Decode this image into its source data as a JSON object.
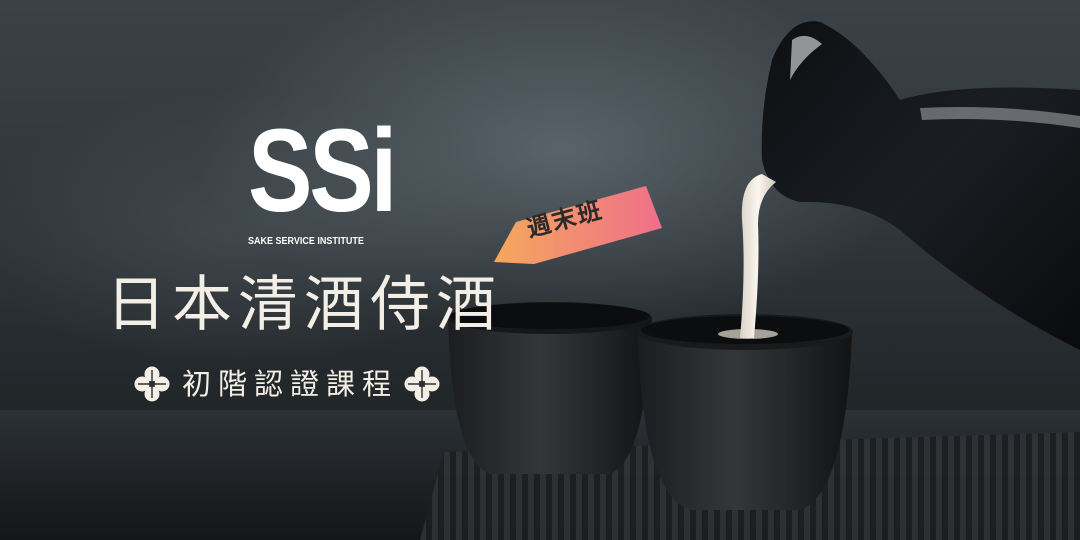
{
  "logo": {
    "mark": "SSi",
    "subtitle": "SAKE SERVICE INSTITUTE"
  },
  "badge": {
    "label": "週末班",
    "gradient_start": "#f4a85c",
    "gradient_end": "#ef6f8a"
  },
  "title": "日本清酒侍酒",
  "subtitle": "初階認證課程",
  "ornament": {
    "left_icon": "flower-icon",
    "right_icon": "flower-icon"
  },
  "colors": {
    "text": "#f4efe6",
    "logo": "#ffffff",
    "background": "#2b3034"
  }
}
